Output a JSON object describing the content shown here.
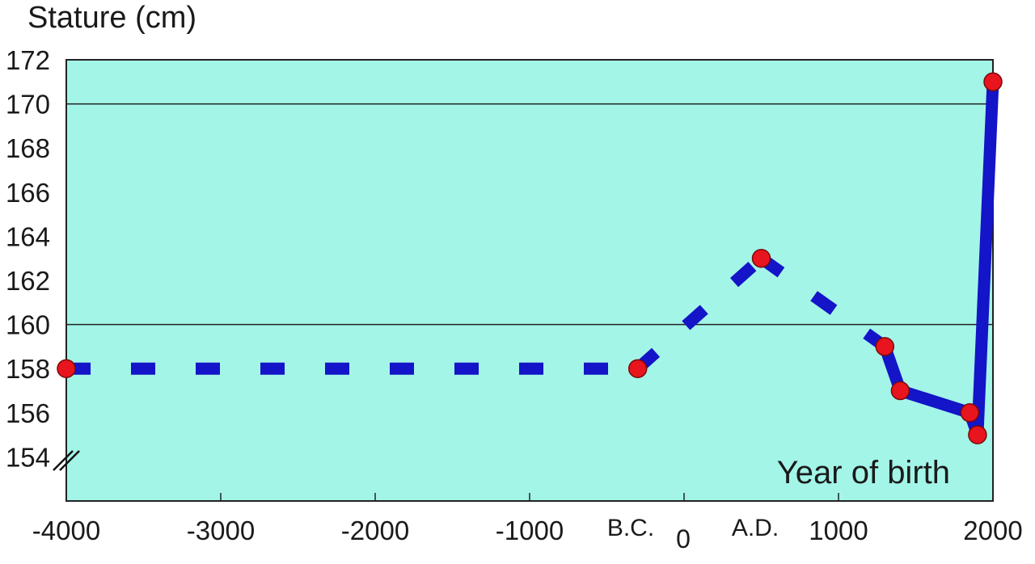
{
  "chart_data": {
    "type": "line",
    "title": "",
    "ylabel": "Stature (cm)",
    "xlabel": "Year of birth",
    "ylim": [
      152,
      172
    ],
    "xlim": [
      -4000,
      2000
    ],
    "yticks": [
      154,
      156,
      158,
      160,
      162,
      164,
      166,
      168,
      170,
      172
    ],
    "xticks": [
      -4000,
      -3000,
      -2000,
      -1000,
      1000,
      2000
    ],
    "extra_labels": {
      "bc": "B.C.",
      "zero": "0",
      "ad": "A.D."
    },
    "gridlines_y": [
      160,
      170
    ],
    "colors": {
      "background": "#a3f5e8",
      "line": "#1414c8",
      "marker": "#e8141e"
    },
    "series": [
      {
        "points": [
          {
            "x": -4000,
            "y": 158
          },
          {
            "x": -300,
            "y": 158
          },
          {
            "x": 500,
            "y": 163
          },
          {
            "x": 1300,
            "y": 159
          },
          {
            "x": 1400,
            "y": 157
          },
          {
            "x": 1850,
            "y": 156
          },
          {
            "x": 1900,
            "y": 155
          },
          {
            "x": 2000,
            "y": 171
          }
        ],
        "segment_styles": [
          "dashed",
          "dashed",
          "dashed",
          "solid",
          "solid",
          "solid",
          "solid"
        ]
      }
    ]
  }
}
